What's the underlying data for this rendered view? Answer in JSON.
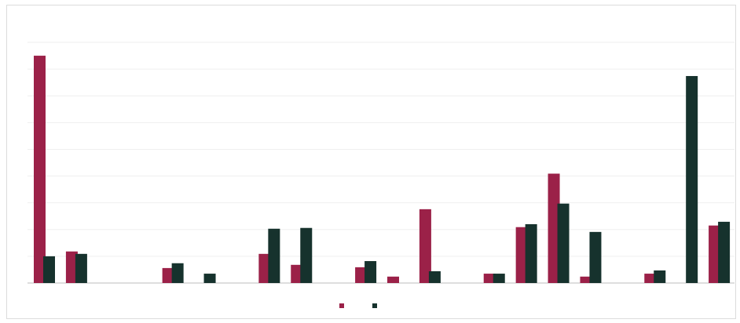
{
  "chart_data": {
    "type": "bar",
    "categories": [
      null,
      null,
      null,
      null,
      null,
      null,
      null,
      null,
      null,
      null,
      null,
      null,
      null,
      null,
      null,
      null,
      null,
      null,
      null,
      null,
      null,
      null
    ],
    "series": [
      {
        "color": "#9b2148",
        "values": [
          8.5,
          1.18,
          0,
          0,
          0.56,
          0,
          0,
          1.09,
          0.68,
          0,
          0.59,
          0.24,
          2.76,
          0,
          0.35,
          2.09,
          4.09,
          0.24,
          0,
          0.35,
          0,
          2.15
        ]
      },
      {
        "color": "#16322d",
        "values": [
          1.0,
          1.09,
          0,
          0,
          0.74,
          0.35,
          0,
          2.03,
          2.06,
          0,
          0.82,
          0,
          0.44,
          0,
          0.35,
          2.2,
          2.97,
          1.91,
          0,
          0.47,
          7.74,
          2.29
        ]
      }
    ],
    "ylim": [
      0,
      9
    ],
    "yticks": [
      0,
      1,
      2,
      3,
      4,
      5,
      6,
      7,
      8,
      9
    ],
    "grid": true,
    "legend": "bottom"
  }
}
